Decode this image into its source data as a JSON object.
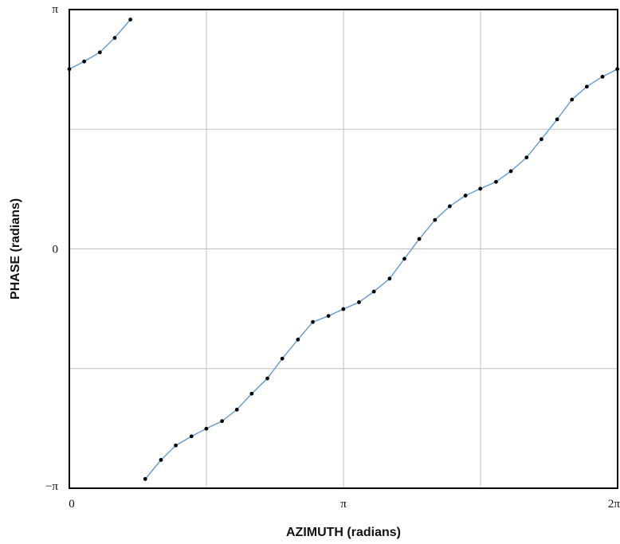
{
  "chart_data": {
    "type": "line",
    "title": "",
    "xlabel": "AZIMUTH (radians)",
    "ylabel": "PHASE (radians)",
    "x_ticks": [
      {
        "value": 0,
        "label": "0"
      },
      {
        "value": 3.14159,
        "label": "π"
      },
      {
        "value": 6.28319,
        "label": "2π"
      }
    ],
    "y_ticks": [
      {
        "value": -3.14159,
        "label": "−π"
      },
      {
        "value": 0,
        "label": "0"
      },
      {
        "value": 3.14159,
        "label": "π"
      }
    ],
    "xlim": [
      0,
      6.28319
    ],
    "ylim": [
      -3.14159,
      3.14159
    ],
    "grid": true,
    "grid_x": [
      0,
      1.5708,
      3.14159,
      4.71239,
      6.28319
    ],
    "grid_y": [
      -3.14159,
      -1.5708,
      0,
      1.5708,
      3.14159
    ],
    "colors": {
      "line": "#6a9fd4",
      "marker": "#000000",
      "grid": "#bfbfbf",
      "frame": "#000000"
    },
    "series": [
      {
        "segment": 1,
        "x": [
          0.0,
          0.17,
          0.35,
          0.52,
          0.7
        ],
        "y": [
          2.36,
          2.46,
          2.58,
          2.77,
          3.01
        ]
      },
      {
        "segment": 2,
        "x": [
          0.87,
          1.05,
          1.22,
          1.4,
          1.57,
          1.75,
          1.92,
          2.09,
          2.27,
          2.44,
          2.62,
          2.79,
          2.97,
          3.14,
          3.32,
          3.49,
          3.67,
          3.84,
          4.01,
          4.19,
          4.36,
          4.54,
          4.71,
          4.89,
          5.06,
          5.24,
          5.41,
          5.59,
          5.76,
          5.93,
          6.11,
          6.28
        ],
        "y": [
          -3.02,
          -2.77,
          -2.58,
          -2.46,
          -2.36,
          -2.26,
          -2.11,
          -1.9,
          -1.7,
          -1.44,
          -1.19,
          -0.96,
          -0.88,
          -0.79,
          -0.7,
          -0.56,
          -0.39,
          -0.13,
          0.13,
          0.38,
          0.56,
          0.7,
          0.79,
          0.88,
          1.02,
          1.2,
          1.44,
          1.7,
          1.96,
          2.13,
          2.26,
          2.36
        ]
      }
    ]
  }
}
